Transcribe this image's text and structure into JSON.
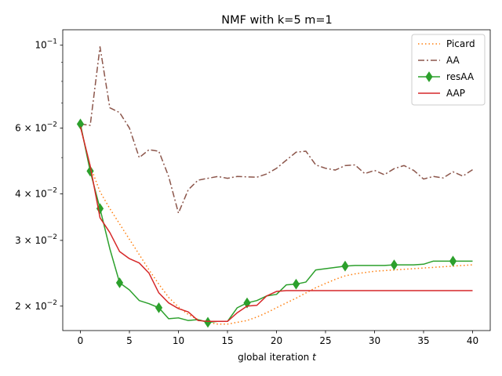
{
  "chart_data": {
    "type": "line",
    "title": "NMF with k=5 m=1",
    "xlabel": "global iteration t",
    "ylabel": "",
    "yscale": "log",
    "xlim": [
      -1.8,
      41.8
    ],
    "ylim": [
      0.0172,
      0.11
    ],
    "xticks": [
      0,
      5,
      10,
      15,
      20,
      25,
      30,
      35,
      40
    ],
    "xtick_labels": [
      "0",
      "5",
      "10",
      "15",
      "20",
      "25",
      "30",
      "35",
      "40"
    ],
    "yticks": [
      {
        "value": 0.02,
        "mantissa": "2",
        "exp": "−2"
      },
      {
        "value": 0.03,
        "mantissa": "3",
        "exp": "−2"
      },
      {
        "value": 0.04,
        "mantissa": "4",
        "exp": "−2"
      },
      {
        "value": 0.06,
        "mantissa": "6",
        "exp": "−2"
      },
      {
        "value": 0.1,
        "mantissa": "",
        "exp": "−1"
      }
    ],
    "ytick_base": "10",
    "ytick_times": "×",
    "legend_position": "top-right",
    "grid": false,
    "series": [
      {
        "name": "Picard",
        "color": "#ff7f0e",
        "style": "dotted",
        "marker": "none",
        "x": [
          0,
          1,
          2,
          3,
          4,
          5,
          6,
          7,
          8,
          9,
          10,
          11,
          12,
          13,
          14,
          15,
          16,
          17,
          18,
          19,
          20,
          21,
          22,
          23,
          24,
          25,
          26,
          27,
          28,
          29,
          30,
          31,
          32,
          33,
          34,
          35,
          36,
          37,
          38,
          39,
          40
        ],
        "y": [
          0.0605,
          0.0475,
          0.0405,
          0.0365,
          0.0332,
          0.0302,
          0.0275,
          0.025,
          0.0229,
          0.0211,
          0.0199,
          0.019,
          0.0184,
          0.0181,
          0.0179,
          0.0179,
          0.0181,
          0.0183,
          0.0187,
          0.0192,
          0.0198,
          0.0204,
          0.021,
          0.0217,
          0.0224,
          0.023,
          0.0236,
          0.0241,
          0.0244,
          0.0246,
          0.0248,
          0.0249,
          0.025,
          0.0251,
          0.0252,
          0.0253,
          0.0254,
          0.0255,
          0.0256,
          0.0257,
          0.0258
        ]
      },
      {
        "name": "AA",
        "color": "#8c564b",
        "style": "dashdot",
        "marker": "none",
        "x": [
          0,
          1,
          2,
          3,
          4,
          5,
          6,
          7,
          8,
          9,
          10,
          11,
          12,
          13,
          14,
          15,
          16,
          17,
          18,
          19,
          20,
          21,
          22,
          23,
          24,
          25,
          26,
          27,
          28,
          29,
          30,
          31,
          32,
          33,
          34,
          35,
          36,
          37,
          38,
          39,
          40
        ],
        "y": [
          0.0615,
          0.061,
          0.099,
          0.068,
          0.066,
          0.06,
          0.05,
          0.0525,
          0.052,
          0.0445,
          0.0355,
          0.041,
          0.0435,
          0.044,
          0.0445,
          0.044,
          0.0445,
          0.0444,
          0.0443,
          0.0452,
          0.0468,
          0.0492,
          0.0517,
          0.052,
          0.0478,
          0.0468,
          0.0463,
          0.0476,
          0.0478,
          0.0453,
          0.0462,
          0.045,
          0.0467,
          0.0476,
          0.0462,
          0.0438,
          0.0445,
          0.0441,
          0.0458,
          0.0446,
          0.0464
        ]
      },
      {
        "name": "resAA",
        "color": "#2ca02c",
        "style": "solid",
        "marker": "diamond",
        "x": [
          0,
          1,
          2,
          3,
          4,
          5,
          6,
          7,
          8,
          9,
          10,
          11,
          12,
          13,
          14,
          15,
          16,
          17,
          18,
          19,
          20,
          21,
          22,
          23,
          24,
          25,
          26,
          27,
          28,
          29,
          30,
          31,
          32,
          33,
          34,
          35,
          36,
          37,
          38,
          39,
          40
        ],
        "y": [
          0.0615,
          0.046,
          0.0365,
          0.0285,
          0.0231,
          0.0221,
          0.0207,
          0.0203,
          0.0198,
          0.0185,
          0.0186,
          0.0183,
          0.0184,
          0.0181,
          0.0182,
          0.0182,
          0.0198,
          0.0204,
          0.0207,
          0.0213,
          0.0215,
          0.0228,
          0.0229,
          0.0232,
          0.025,
          0.0252,
          0.0254,
          0.0256,
          0.0257,
          0.0257,
          0.0257,
          0.0257,
          0.0258,
          0.0258,
          0.0258,
          0.0259,
          0.0264,
          0.0264,
          0.0264,
          0.0264,
          0.0264
        ],
        "marker_at": [
          0,
          1,
          2,
          4,
          8,
          13,
          17,
          22,
          27,
          32,
          38
        ]
      },
      {
        "name": "AAP",
        "color": "#d62728",
        "style": "solid",
        "marker": "none",
        "x": [
          0,
          1,
          2,
          3,
          4,
          5,
          6,
          7,
          8,
          9,
          10,
          11,
          12,
          13,
          14,
          15,
          16,
          17,
          18,
          19,
          20,
          21,
          22,
          23,
          24,
          25,
          26,
          27,
          28,
          29,
          30,
          31,
          32,
          33,
          34,
          35,
          36,
          37,
          38,
          39,
          40
        ],
        "y": [
          0.0605,
          0.0475,
          0.0345,
          0.0315,
          0.028,
          0.0268,
          0.0261,
          0.0245,
          0.0217,
          0.0204,
          0.0197,
          0.0193,
          0.0183,
          0.0182,
          0.0182,
          0.0182,
          0.0192,
          0.02,
          0.0201,
          0.0213,
          0.0219,
          0.022,
          0.022,
          0.022,
          0.022,
          0.022,
          0.022,
          0.022,
          0.022,
          0.022,
          0.022,
          0.022,
          0.022,
          0.022,
          0.022,
          0.022,
          0.022,
          0.022,
          0.022,
          0.022,
          0.022
        ]
      }
    ]
  }
}
